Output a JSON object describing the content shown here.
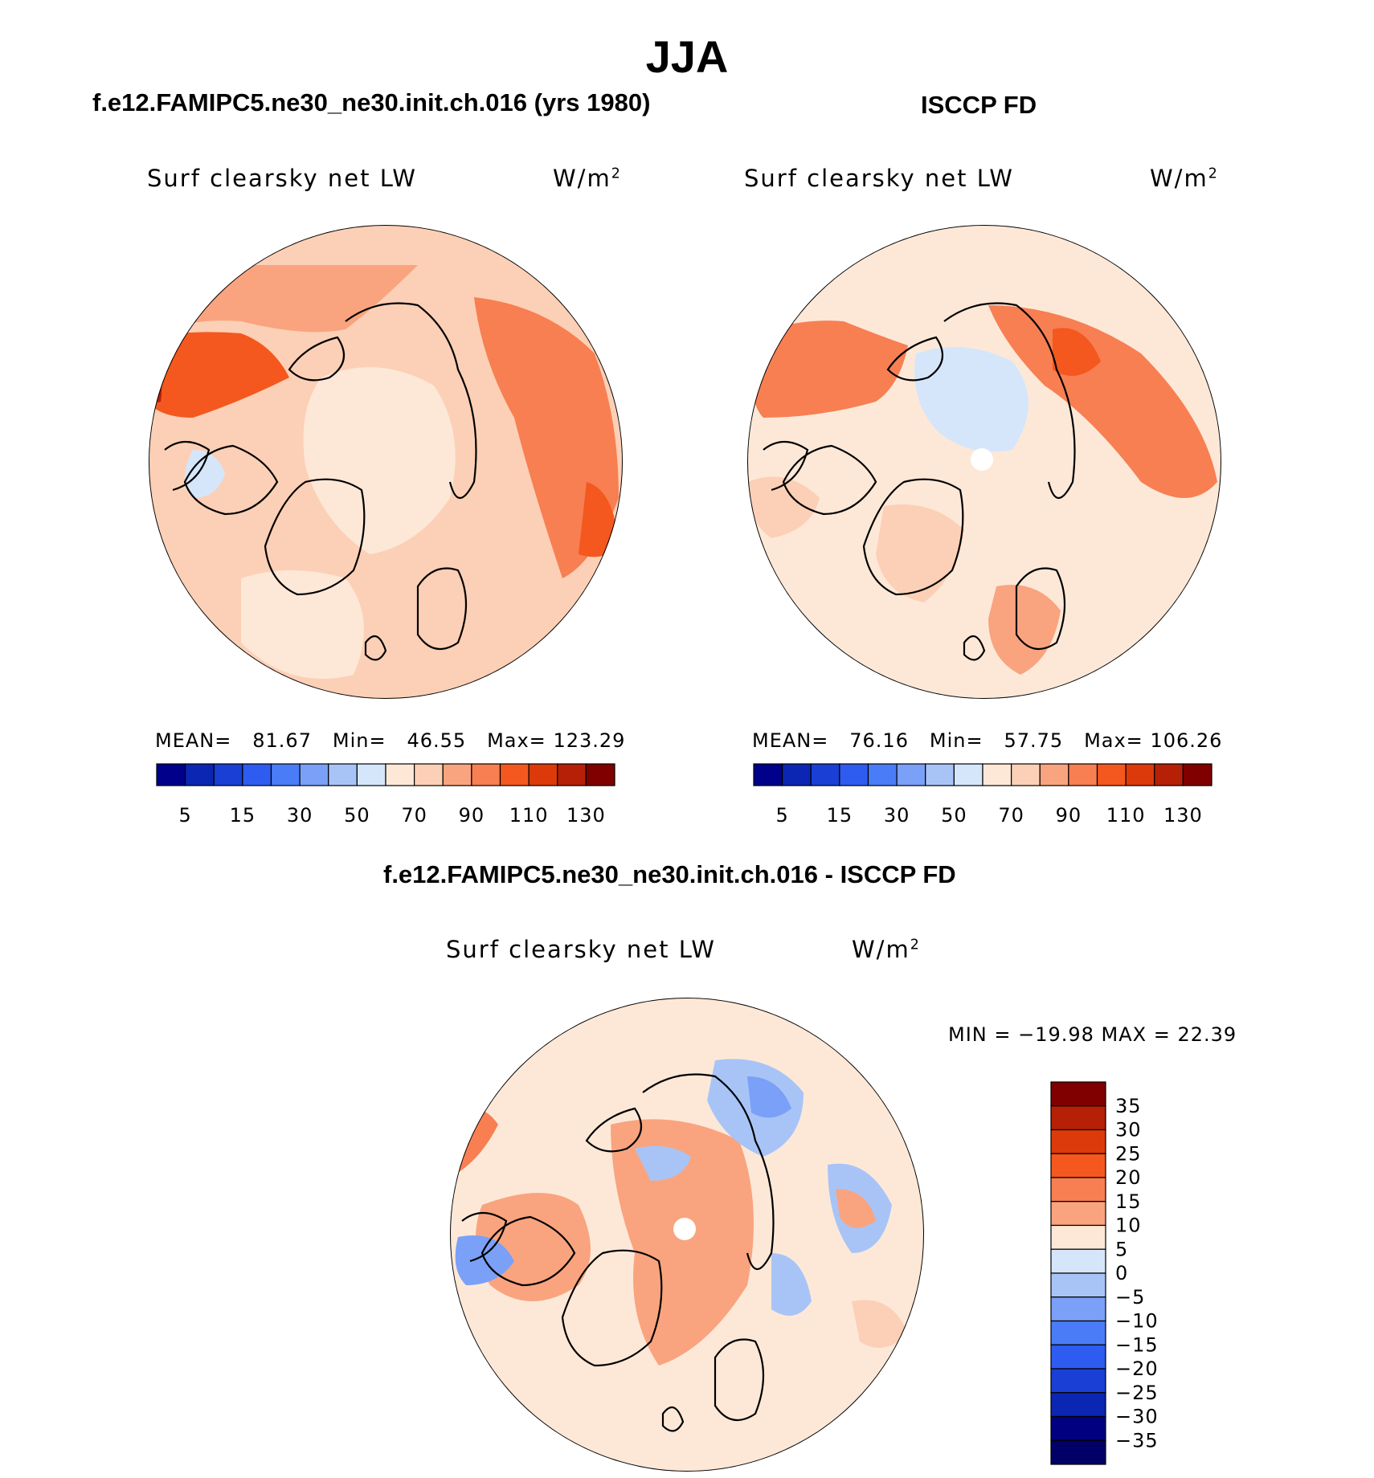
{
  "title": "JJA",
  "panels": [
    {
      "case_title": "f.e12.FAMIPC5.ne30_ne30.init.ch.016 (yrs 1980)",
      "variable": "Surf clearsky net LW",
      "units_base": "W/m",
      "units_exp": "2",
      "stats": {
        "mean_label": "MEAN=",
        "mean": "81.67",
        "min_label": "Min=",
        "min": "46.55",
        "max_label": "Max=",
        "max": "123.29"
      }
    },
    {
      "case_title": "ISCCP FD",
      "variable": "Surf clearsky net LW",
      "units_base": "W/m",
      "units_exp": "2",
      "stats": {
        "mean_label": "MEAN=",
        "mean": "76.16",
        "min_label": "Min=",
        "min": "57.75",
        "max_label": "Max=",
        "max": "106.26"
      }
    },
    {
      "case_title": "f.e12.FAMIPC5.ne30_ne30.init.ch.016 - ISCCP FD",
      "variable": "Surf clearsky net LW",
      "units_base": "W/m",
      "units_exp": "2",
      "stats": {
        "text": "MIN = −19.98 MAX =   22.39"
      }
    }
  ],
  "colorbar_horizontal": {
    "colors": [
      "#00008b",
      "#0a26b2",
      "#1a3fd4",
      "#2e5cf0",
      "#4a7cf7",
      "#7aa0f8",
      "#a8c4f7",
      "#d5e6fa",
      "#fde8d8",
      "#fcd0b6",
      "#f9a47f",
      "#f77f52",
      "#f4581e",
      "#dd3a0b",
      "#b52006",
      "#800000"
    ],
    "tick_labels": [
      "5",
      "15",
      "30",
      "50",
      "70",
      "90",
      "110",
      "130"
    ]
  },
  "colorbar_vertical": {
    "colors": [
      "#800000",
      "#b52006",
      "#dd3a0b",
      "#f4581e",
      "#f77f52",
      "#f9a47f",
      "#fde8d8",
      "#d5e6fa",
      "#a8c4f7",
      "#7aa0f8",
      "#4a7cf7",
      "#2e5cf0",
      "#1a3fd4",
      "#0a26b2",
      "#000080",
      "#000066"
    ],
    "tick_labels": [
      "35",
      "30",
      "25",
      "20",
      "15",
      "10",
      "5",
      "0",
      "−5",
      "−10",
      "−15",
      "−20",
      "−25",
      "−30",
      "−35"
    ]
  }
}
